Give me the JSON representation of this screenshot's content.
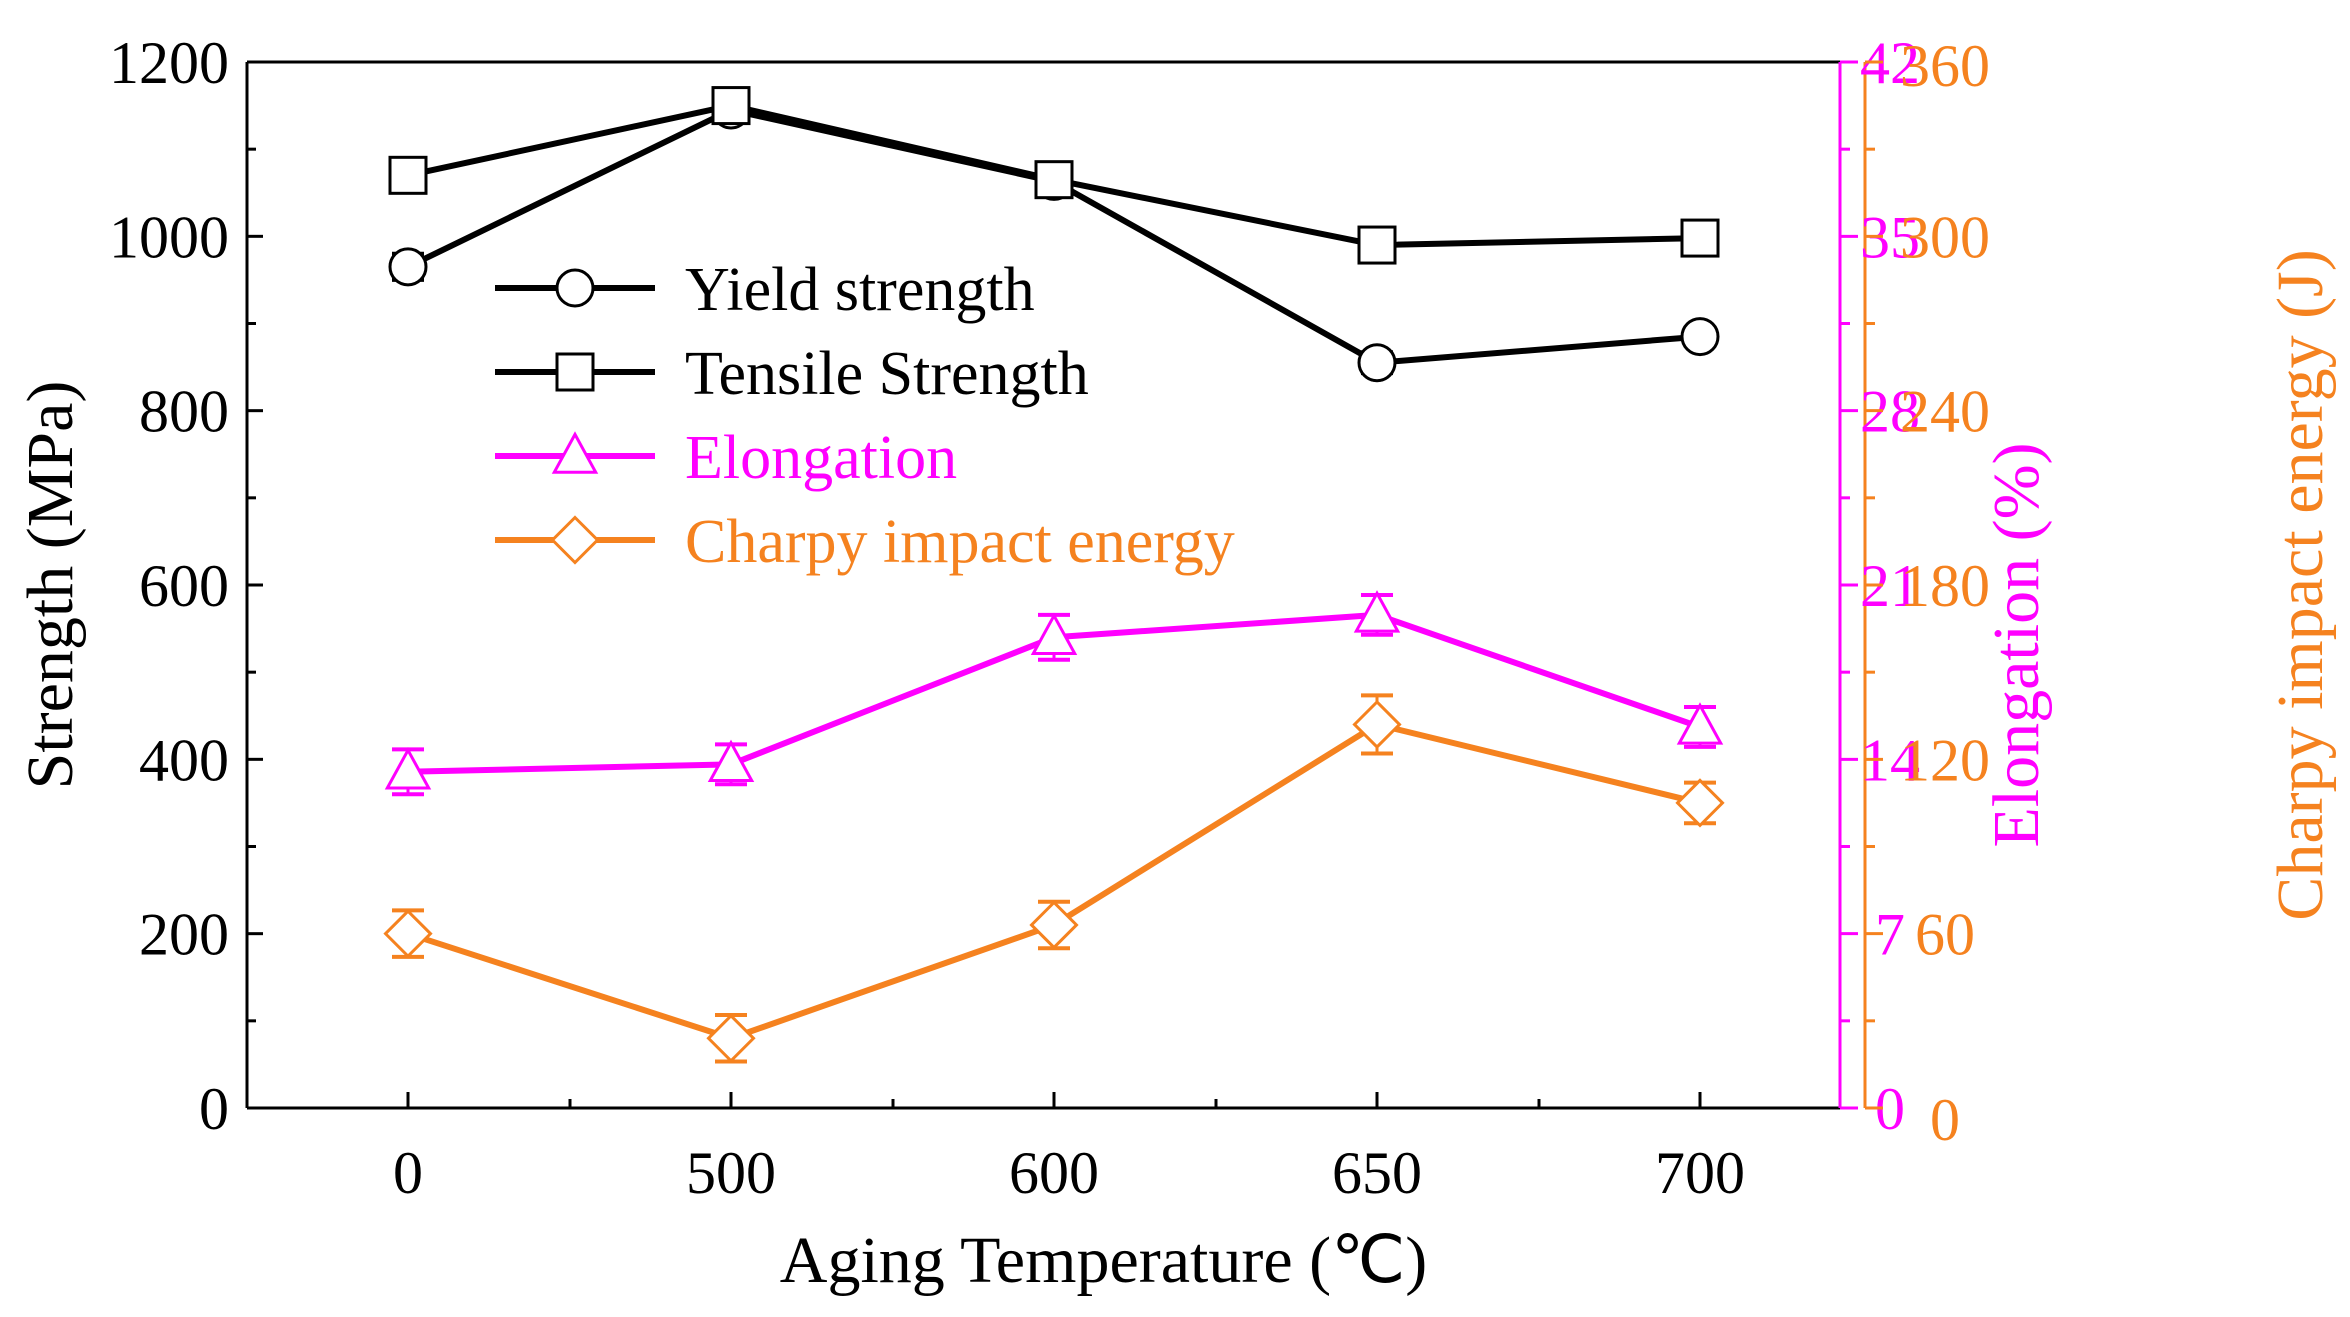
{
  "chart_data": {
    "type": "line",
    "categories": [
      "0",
      "500",
      "600",
      "650",
      "700"
    ],
    "xlabel": "Aging Temperature (℃)",
    "axes": {
      "left": {
        "label": "Strength (MPa)",
        "range": [
          0,
          1200
        ],
        "ticks": [
          0,
          200,
          400,
          600,
          800,
          1000,
          1200
        ],
        "color": "#000000"
      },
      "right1": {
        "label": "Elongation (%)",
        "range": [
          0,
          42
        ],
        "ticks": [
          0,
          7,
          14,
          21,
          28,
          35,
          42
        ],
        "color": "#ff00ff"
      },
      "right2": {
        "label": "Charpy impact energy (J)",
        "range": [
          0,
          360
        ],
        "ticks": [
          0,
          60,
          120,
          180,
          240,
          300,
          360
        ],
        "color": "#f5821f"
      }
    },
    "series": [
      {
        "name": "Yield strength",
        "axis": "left",
        "marker": "circle",
        "color": "#000000",
        "values": [
          965,
          1145,
          1063,
          855,
          885
        ],
        "errors": [
          15,
          15,
          12,
          12,
          10
        ]
      },
      {
        "name": "Tensile Strength",
        "axis": "left",
        "marker": "square",
        "color": "#000000",
        "values": [
          1070,
          1150,
          1065,
          990,
          998
        ],
        "errors": [
          15,
          12,
          12,
          10,
          10
        ]
      },
      {
        "name": "Elongation",
        "axis": "right1",
        "marker": "triangle",
        "color": "#ff00ff",
        "values": [
          13.5,
          13.8,
          18.9,
          19.8,
          15.3
        ],
        "errors": [
          0.9,
          0.8,
          0.9,
          0.8,
          0.8
        ]
      },
      {
        "name": "Charpy impact energy",
        "axis": "right2",
        "marker": "diamond",
        "color": "#f5821f",
        "values": [
          60,
          24,
          63,
          132,
          105
        ],
        "errors": [
          8,
          8,
          8,
          10,
          7
        ]
      }
    ]
  }
}
